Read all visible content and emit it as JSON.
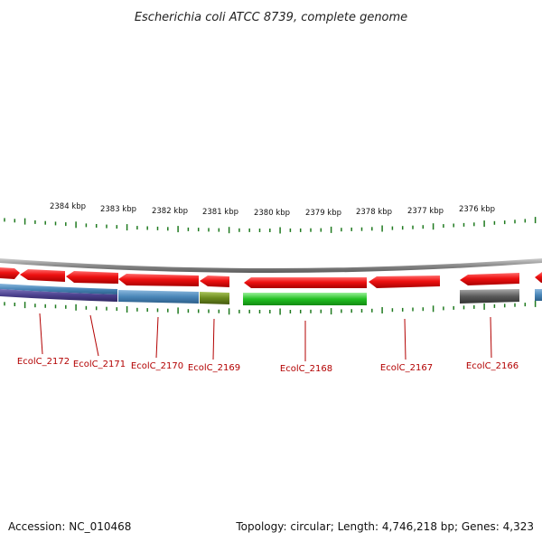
{
  "title": "Escherichia coli ATCC 8739, complete genome",
  "footer": {
    "accession": "Accession: NC_010468",
    "summary": "Topology: circular; Length: 4,746,218 bp; Genes: 4,323"
  },
  "kbp_labels": [
    "2384 kbp",
    "2383 kbp",
    "2382 kbp",
    "2381 kbp",
    "2380 kbp",
    "2379 kbp",
    "2378 kbp",
    "2377 kbp",
    "2376 kbp"
  ],
  "gene_labels": [
    "EcolC_2172",
    "EcolC_2171",
    "EcolC_2170",
    "EcolC_2169",
    "EcolC_2168",
    "EcolC_2167",
    "EcolC_2166"
  ],
  "colors": {
    "red_gene": "#ee1111",
    "blue_track": "#4a86b8",
    "purple_track": "#4a3f8c",
    "olive_track": "#6b8a1e",
    "green_track": "#22c022",
    "gray_track": "#5a5a5a",
    "tick": "#1f7a1f",
    "label": "#b30000",
    "backbone": "#888888"
  }
}
